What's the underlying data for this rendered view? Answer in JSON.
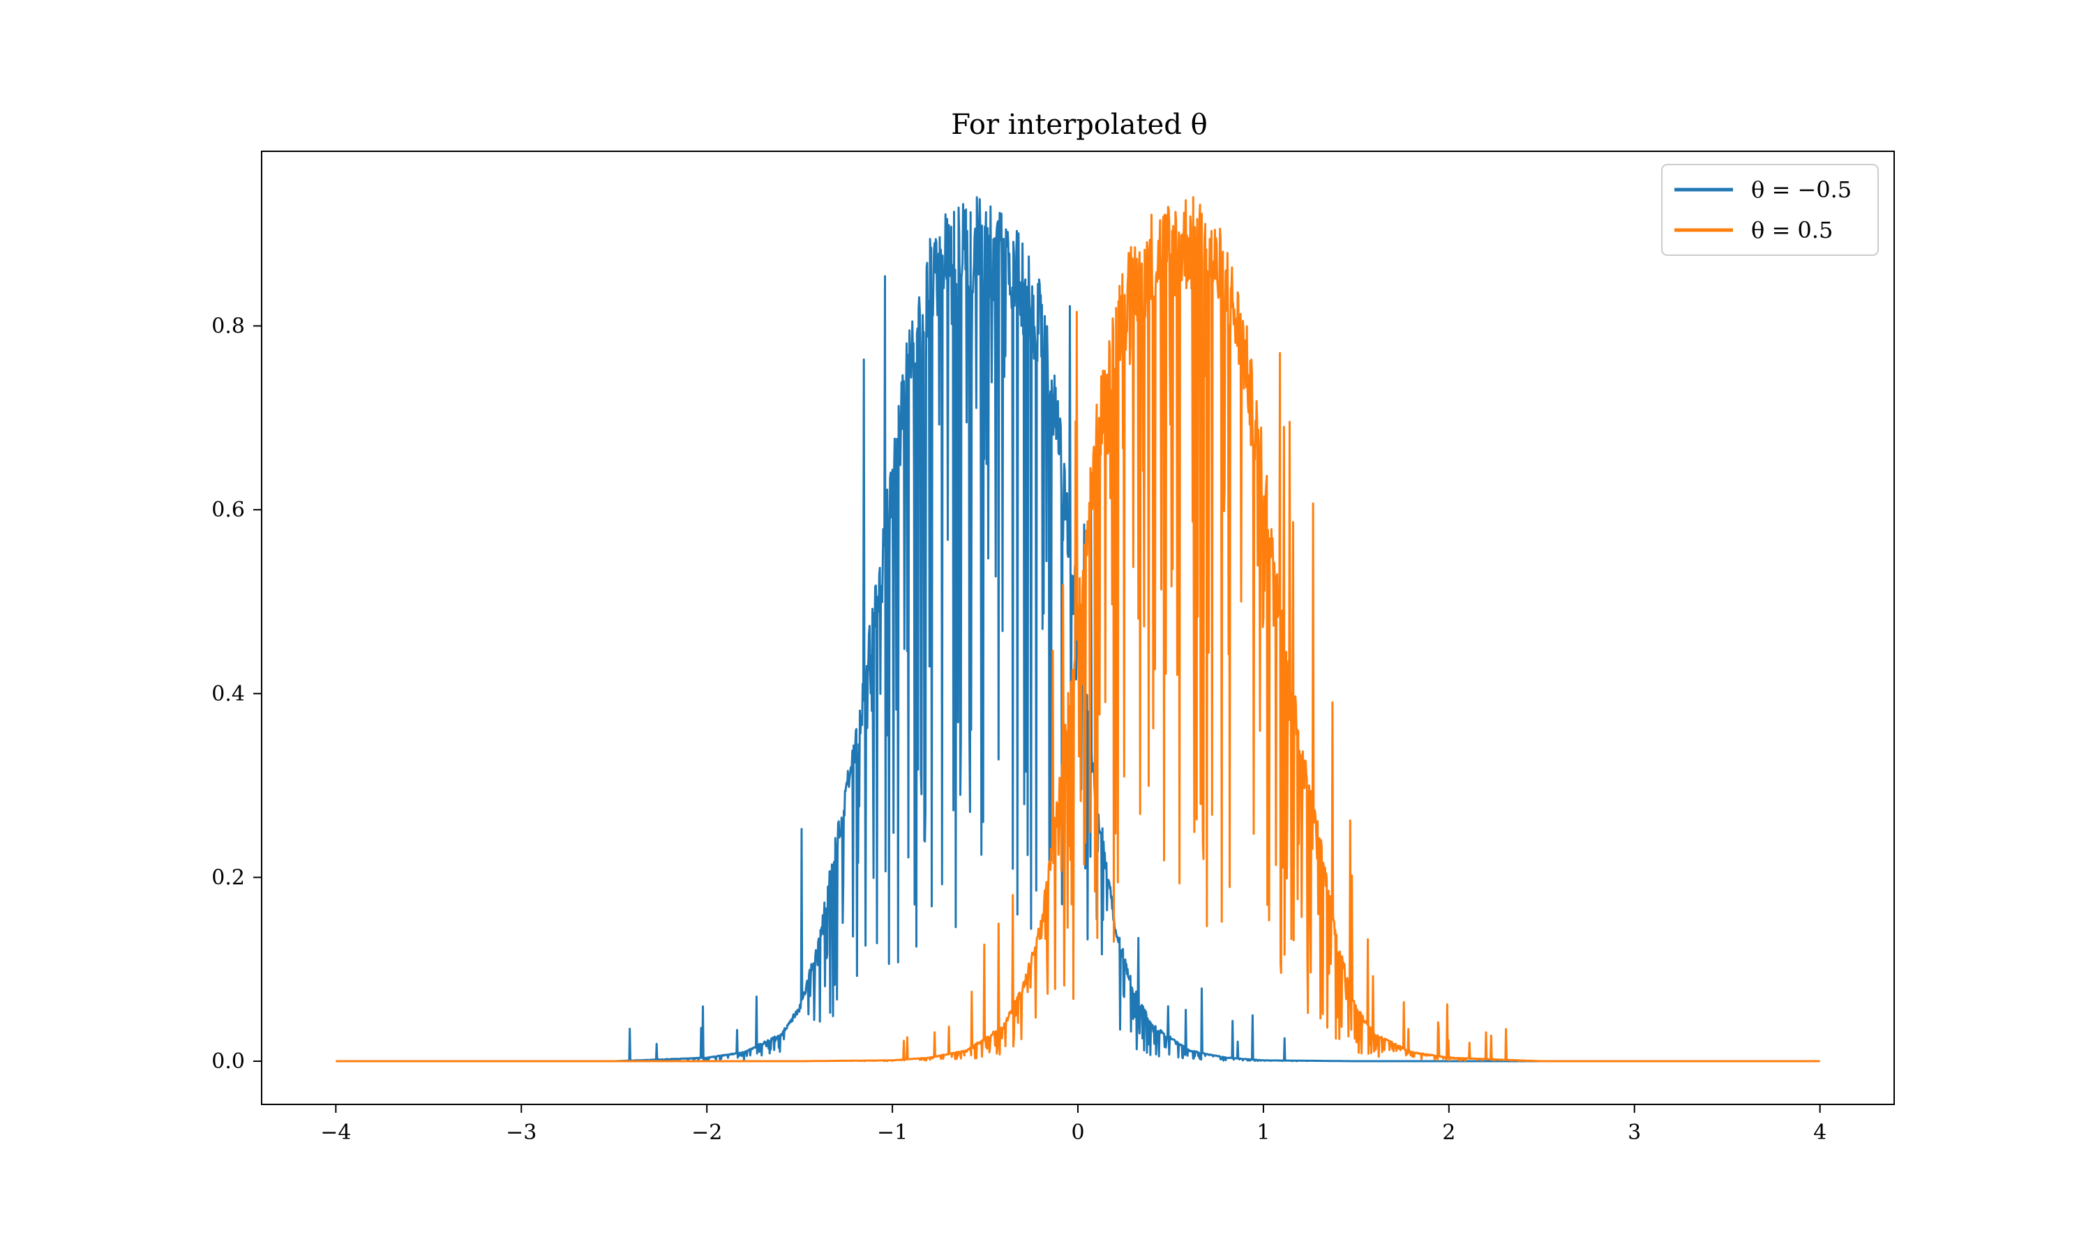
{
  "chart_data": {
    "type": "line",
    "title": "For interpolated θ",
    "xlabel": "",
    "ylabel": "",
    "xlim": [
      -4.4,
      4.4
    ],
    "ylim": [
      -0.047,
      0.99
    ],
    "xticks": [
      -4,
      -3,
      -2,
      -1,
      0,
      1,
      2,
      3,
      4
    ],
    "xtick_labels": [
      "−4",
      "−3",
      "−2",
      "−1",
      "0",
      "1",
      "2",
      "3",
      "4"
    ],
    "yticks": [
      0.0,
      0.2,
      0.4,
      0.6,
      0.8
    ],
    "ytick_labels": [
      "0.0",
      "0.2",
      "0.4",
      "0.6",
      "0.8"
    ],
    "grid": false,
    "legend_position": "top-right",
    "x_range": [
      -4,
      4
    ],
    "series": [
      {
        "name": "θ = −0.5",
        "color": "#1f77b4",
        "center": -0.5,
        "peak": 0.94,
        "envelope": [
          [
            -4.0,
            0.0
          ],
          [
            -2.5,
            0.0
          ],
          [
            -2.0,
            0.004
          ],
          [
            -1.8,
            0.01
          ],
          [
            -1.6,
            0.03
          ],
          [
            -1.5,
            0.06
          ],
          [
            -1.4,
            0.13
          ],
          [
            -1.3,
            0.25
          ],
          [
            -1.2,
            0.35
          ],
          [
            -1.1,
            0.5
          ],
          [
            -1.0,
            0.66
          ],
          [
            -0.9,
            0.8
          ],
          [
            -0.8,
            0.88
          ],
          [
            -0.7,
            0.91
          ],
          [
            -0.6,
            0.93
          ],
          [
            -0.5,
            0.92
          ],
          [
            -0.4,
            0.91
          ],
          [
            -0.3,
            0.88
          ],
          [
            -0.2,
            0.83
          ],
          [
            -0.1,
            0.7
          ],
          [
            0.0,
            0.5
          ],
          [
            0.1,
            0.3
          ],
          [
            0.2,
            0.15
          ],
          [
            0.3,
            0.08
          ],
          [
            0.4,
            0.04
          ],
          [
            0.6,
            0.012
          ],
          [
            0.8,
            0.004
          ],
          [
            1.0,
            0.001
          ],
          [
            1.5,
            0.0
          ],
          [
            4.0,
            0.0
          ]
        ]
      },
      {
        "name": "θ = 0.5",
        "color": "#ff7f0e",
        "center": 0.5,
        "peak": 0.94,
        "envelope": [
          [
            -4.0,
            0.0
          ],
          [
            -1.5,
            0.0
          ],
          [
            -1.0,
            0.001
          ],
          [
            -0.8,
            0.004
          ],
          [
            -0.6,
            0.012
          ],
          [
            -0.4,
            0.04
          ],
          [
            -0.3,
            0.08
          ],
          [
            -0.2,
            0.15
          ],
          [
            -0.1,
            0.3
          ],
          [
            0.0,
            0.5
          ],
          [
            0.1,
            0.7
          ],
          [
            0.2,
            0.83
          ],
          [
            0.3,
            0.88
          ],
          [
            0.4,
            0.91
          ],
          [
            0.5,
            0.92
          ],
          [
            0.6,
            0.93
          ],
          [
            0.7,
            0.91
          ],
          [
            0.8,
            0.88
          ],
          [
            0.9,
            0.8
          ],
          [
            1.0,
            0.66
          ],
          [
            1.1,
            0.5
          ],
          [
            1.2,
            0.35
          ],
          [
            1.3,
            0.25
          ],
          [
            1.4,
            0.13
          ],
          [
            1.5,
            0.06
          ],
          [
            1.6,
            0.03
          ],
          [
            1.8,
            0.01
          ],
          [
            2.0,
            0.004
          ],
          [
            2.5,
            0.0
          ],
          [
            4.0,
            0.0
          ]
        ]
      }
    ]
  }
}
